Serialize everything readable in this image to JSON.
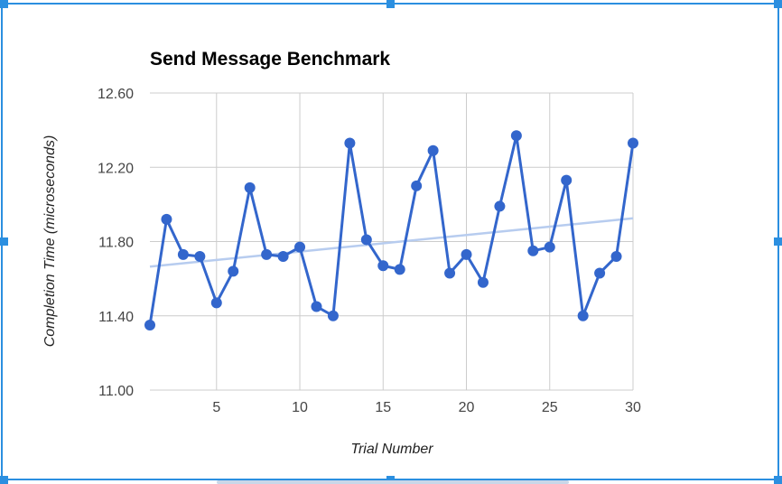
{
  "chart_data": {
    "type": "line",
    "title": "Send Message Benchmark",
    "xlabel": "Trial Number",
    "ylabel": "Completion Time (microseconds)",
    "xlim": [
      1,
      30
    ],
    "ylim": [
      11.0,
      12.6
    ],
    "x_ticks": [
      5,
      10,
      15,
      20,
      25,
      30
    ],
    "y_ticks": [
      "11.00",
      "11.40",
      "11.80",
      "12.20",
      "12.60"
    ],
    "grid": true,
    "legend": "none",
    "series": [
      {
        "x": [
          1,
          2,
          3,
          4,
          5,
          6,
          7,
          8,
          9,
          10,
          11,
          12,
          13,
          14,
          15,
          16,
          17,
          18,
          19,
          20,
          21,
          22,
          23,
          24,
          25,
          26,
          27,
          28,
          29,
          30
        ],
        "values": [
          11.35,
          11.92,
          11.73,
          11.72,
          11.47,
          11.64,
          12.09,
          11.73,
          11.72,
          11.77,
          11.45,
          11.4,
          12.33,
          11.81,
          11.67,
          11.65,
          12.1,
          12.29,
          11.63,
          11.73,
          11.58,
          11.99,
          12.37,
          11.75,
          11.77,
          12.13,
          11.4,
          11.63,
          11.72,
          12.33
        ],
        "color": "#3366cc"
      }
    ],
    "trendline": {
      "x": [
        1,
        30
      ],
      "values": [
        11.665,
        11.925
      ],
      "color": "#b7ccef"
    }
  }
}
